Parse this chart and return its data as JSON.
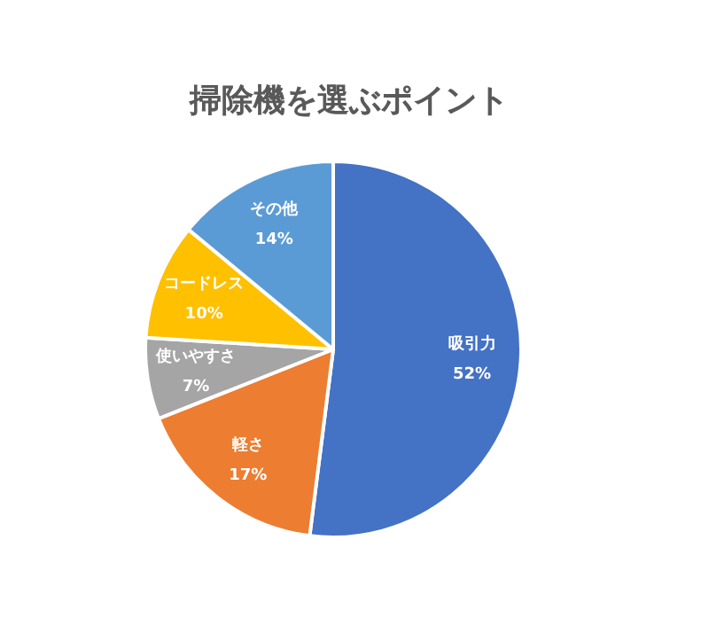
{
  "chart_data": {
    "type": "pie",
    "title": "掃除機を選ぶポイント",
    "categories": [
      "吸引力",
      "軽さ",
      "使いやすさ",
      "コードレス",
      "その他"
    ],
    "values": [
      52,
      17,
      7,
      10,
      14
    ],
    "colors": [
      "#4472c4",
      "#ed7d31",
      "#a5a5a5",
      "#ffc000",
      "#5b9bd5"
    ],
    "value_labels": [
      "52%",
      "17%",
      "7%",
      "10%",
      "14%"
    ],
    "legend": false
  }
}
